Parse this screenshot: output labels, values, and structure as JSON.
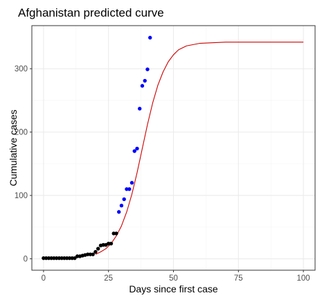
{
  "chart_data": {
    "type": "scatter",
    "title": "Afghanistan predicted curve",
    "xlabel": "Days since first case",
    "ylabel": "Cumulative cases",
    "xlim": [
      -4.5,
      104.5
    ],
    "ylim": [
      -18,
      368
    ],
    "x_ticks": [
      0,
      25,
      50,
      75,
      100
    ],
    "y_ticks": [
      0,
      100,
      200,
      300
    ],
    "grid": true,
    "legend": "none",
    "colors": {
      "observed": "#000000",
      "recent": "#0000ff",
      "curve": "#cc0000",
      "grid_major": "#ebebeb",
      "grid_minor": "#f5f5f5",
      "border": "#333333"
    },
    "series": [
      {
        "type": "scatter",
        "color": "#000000",
        "points": [
          [
            0,
            1
          ],
          [
            1,
            1
          ],
          [
            2,
            1
          ],
          [
            3,
            1
          ],
          [
            4,
            1
          ],
          [
            5,
            1
          ],
          [
            6,
            1
          ],
          [
            7,
            1
          ],
          [
            8,
            1
          ],
          [
            9,
            1
          ],
          [
            10,
            1
          ],
          [
            11,
            1
          ],
          [
            12,
            1
          ],
          [
            13,
            4
          ],
          [
            14,
            4
          ],
          [
            15,
            5
          ],
          [
            16,
            6
          ],
          [
            17,
            7
          ],
          [
            18,
            7
          ],
          [
            19,
            7
          ],
          [
            20,
            11
          ],
          [
            21,
            16
          ],
          [
            22,
            21
          ],
          [
            23,
            22
          ],
          [
            24,
            22
          ],
          [
            25,
            24
          ],
          [
            26,
            24
          ],
          [
            27,
            40
          ],
          [
            28,
            40
          ]
        ]
      },
      {
        "type": "scatter",
        "color": "#0000ff",
        "points": [
          [
            29,
            74
          ],
          [
            30,
            84
          ],
          [
            31,
            94
          ],
          [
            32,
            110
          ],
          [
            33,
            110
          ],
          [
            34,
            120
          ],
          [
            35,
            170
          ],
          [
            36,
            174
          ],
          [
            37,
            237
          ],
          [
            38,
            273
          ],
          [
            39,
            281
          ],
          [
            40,
            299
          ],
          [
            41,
            349
          ]
        ]
      },
      {
        "type": "line",
        "color": "#cc0000",
        "points": [
          [
            20,
            7
          ],
          [
            22,
            11
          ],
          [
            24,
            16
          ],
          [
            26,
            24
          ],
          [
            28,
            36
          ],
          [
            30,
            52
          ],
          [
            32,
            74
          ],
          [
            34,
            102
          ],
          [
            36,
            136
          ],
          [
            38,
            174
          ],
          [
            40,
            212
          ],
          [
            42,
            246
          ],
          [
            44,
            274
          ],
          [
            46,
            295
          ],
          [
            48,
            311
          ],
          [
            50,
            322
          ],
          [
            52,
            330
          ],
          [
            55,
            336
          ],
          [
            60,
            340
          ],
          [
            65,
            341
          ],
          [
            70,
            342
          ],
          [
            80,
            342
          ],
          [
            90,
            342
          ],
          [
            100,
            342
          ]
        ]
      }
    ]
  }
}
